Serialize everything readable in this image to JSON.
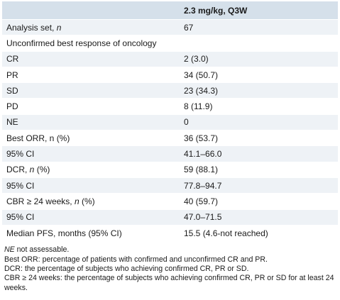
{
  "table": {
    "header": {
      "col1": "",
      "col2": "2.3 mg/kg, Q3W"
    },
    "rows": [
      {
        "label": "Analysis set, ",
        "label_it": "n",
        "label_tail": "",
        "value": "67"
      },
      {
        "label": "Unconfirmed best response of oncology",
        "label_it": "",
        "label_tail": "",
        "value": ""
      },
      {
        "label": "CR",
        "label_it": "",
        "label_tail": "",
        "value": "2 (3.0)"
      },
      {
        "label": "PR",
        "label_it": "",
        "label_tail": "",
        "value": "34 (50.7)"
      },
      {
        "label": "SD",
        "label_it": "",
        "label_tail": "",
        "value": "23 (34.3)"
      },
      {
        "label": "PD",
        "label_it": "",
        "label_tail": "",
        "value": "8 (11.9)"
      },
      {
        "label": "NE",
        "label_it": "",
        "label_tail": "",
        "value": "0"
      },
      {
        "label": "Best ORR, n (%)",
        "label_it": "",
        "label_tail": "",
        "value": "36 (53.7)"
      },
      {
        "label": "95% CI",
        "label_it": "",
        "label_tail": "",
        "value": "41.1–66.0"
      },
      {
        "label": "DCR, ",
        "label_it": "n",
        "label_tail": " (%)",
        "value": "59 (88.1)"
      },
      {
        "label": "95% CI",
        "label_it": "",
        "label_tail": "",
        "value": "77.8–94.7"
      },
      {
        "label": "CBR ≥ 24 weeks, ",
        "label_it": "n",
        "label_tail": " (%)",
        "value": "40 (59.7)"
      },
      {
        "label": "95% CI",
        "label_it": "",
        "label_tail": "",
        "value": "47.0–71.5"
      },
      {
        "label": "Median PFS, months (95% CI)",
        "label_it": "",
        "label_tail": "",
        "value": "15.5 (4.6-not reached)"
      }
    ]
  },
  "footnotes": {
    "ne_abbr": "NE",
    "ne_text": " not assessable.",
    "orr": "Best ORR: percentage of patients with confirmed and unconfirmed CR and PR.",
    "dcr": "DCR: the percentage of subjects who achieving confirmed CR, PR or SD.",
    "cbr": "CBR ≥ 24 weeks: the percentage of subjects who achieving confirmed CR, PR or SD for at least 24 weeks."
  }
}
